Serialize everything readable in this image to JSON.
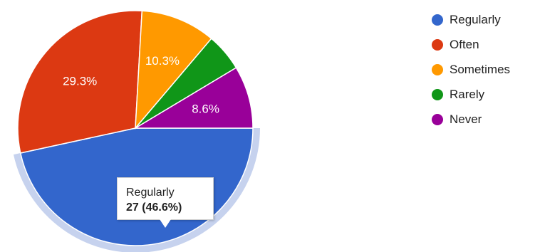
{
  "chart_data": {
    "type": "pie",
    "slices": [
      {
        "label": "Regularly",
        "count": 27,
        "percent": 46.6,
        "percent_label": "",
        "color": "#3366cc"
      },
      {
        "label": "Often",
        "percent": 29.3,
        "percent_label": "29.3%",
        "color": "#dc3912"
      },
      {
        "label": "Sometimes",
        "percent": 10.3,
        "percent_label": "10.3%",
        "color": "#ff9900"
      },
      {
        "label": "Rarely",
        "percent": 5.2,
        "percent_label": "",
        "color": "#109618"
      },
      {
        "label": "Never",
        "percent": 8.6,
        "percent_label": "8.6%",
        "color": "#990099"
      }
    ],
    "legend_position": "right",
    "highlighted_slice": "Regularly",
    "highlight_color": "#c6d2ee"
  },
  "tooltip": {
    "title": "Regularly",
    "value": "27 (46.6%)"
  }
}
